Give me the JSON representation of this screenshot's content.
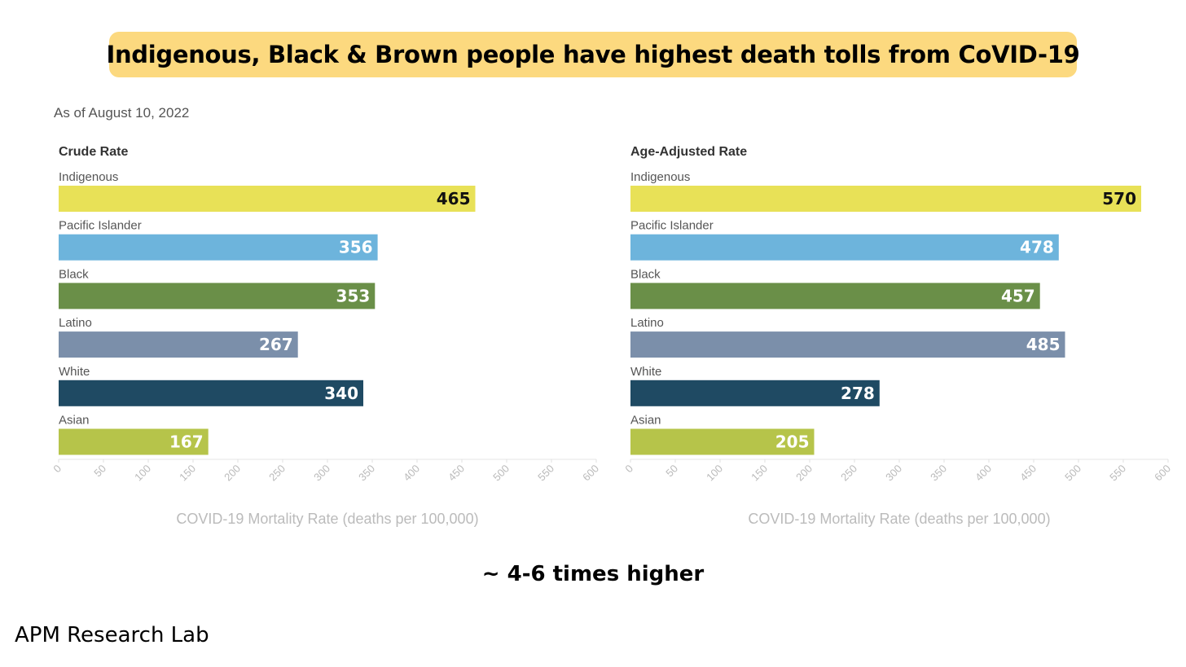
{
  "headline": "Indigenous, Black & Brown people have highest death tolls from CoVID-19",
  "as_of": "As of August 10, 2022",
  "footnote": "~ 4-6 times higher",
  "credit": "APM Research Lab",
  "chart_data": [
    {
      "type": "bar",
      "orientation": "horizontal",
      "title": "Crude Rate",
      "categories": [
        "Indigenous",
        "Pacific Islander",
        "Black",
        "Latino",
        "White",
        "Asian"
      ],
      "values": [
        465,
        356,
        353,
        267,
        340,
        167
      ],
      "colors": [
        "#e8e157",
        "#6db4dc",
        "#6a8f48",
        "#7b8faa",
        "#1f4a63",
        "#b6c44a"
      ],
      "label_colors": [
        "#111111",
        "#ffffff",
        "#ffffff",
        "#ffffff",
        "#ffffff",
        "#ffffff"
      ],
      "xlabel": "COVID-19 Mortality Rate (deaths per 100,000)",
      "xlim": [
        0,
        600
      ],
      "xticks": [
        0,
        50,
        100,
        150,
        200,
        250,
        300,
        350,
        400,
        450,
        500,
        550,
        600
      ],
      "grid": false
    },
    {
      "type": "bar",
      "orientation": "horizontal",
      "title": "Age-Adjusted Rate",
      "categories": [
        "Indigenous",
        "Pacific Islander",
        "Black",
        "Latino",
        "White",
        "Asian"
      ],
      "values": [
        570,
        478,
        457,
        485,
        278,
        205
      ],
      "colors": [
        "#e8e157",
        "#6db4dc",
        "#6a8f48",
        "#7b8faa",
        "#1f4a63",
        "#b6c44a"
      ],
      "label_colors": [
        "#111111",
        "#ffffff",
        "#ffffff",
        "#ffffff",
        "#ffffff",
        "#ffffff"
      ],
      "xlabel": "COVID-19 Mortality Rate (deaths per 100,000)",
      "xlim": [
        0,
        600
      ],
      "xticks": [
        0,
        50,
        100,
        150,
        200,
        250,
        300,
        350,
        400,
        450,
        500,
        550,
        600
      ],
      "grid": false
    }
  ]
}
